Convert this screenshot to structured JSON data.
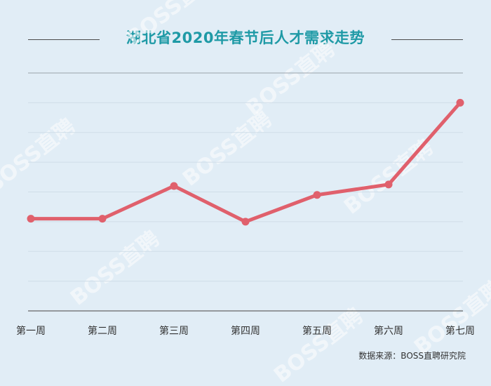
{
  "title": "湖北省2020年春节后人才需求走势",
  "source": "数据来源：BOSS直聘研究院",
  "watermark": "BOSS直聘",
  "colors": {
    "line": "#e0606c",
    "title": "#1f9aa6",
    "background": "#e1edf6",
    "grid": "#cfdde8",
    "axis": "#666666"
  },
  "chart_data": {
    "type": "line",
    "title": "湖北省2020年春节后人才需求走势",
    "xlabel": "",
    "ylabel": "",
    "categories": [
      "第一周",
      "第二周",
      "第三周",
      "第四周",
      "第五周",
      "第六周",
      "第七周"
    ],
    "series": [
      {
        "values": [
          31,
          31,
          42,
          30,
          39,
          42.5,
          70
        ]
      }
    ],
    "ylim": [
      0,
      80
    ],
    "grid": true,
    "y_tick_labels_shown": false,
    "legend": "none"
  }
}
